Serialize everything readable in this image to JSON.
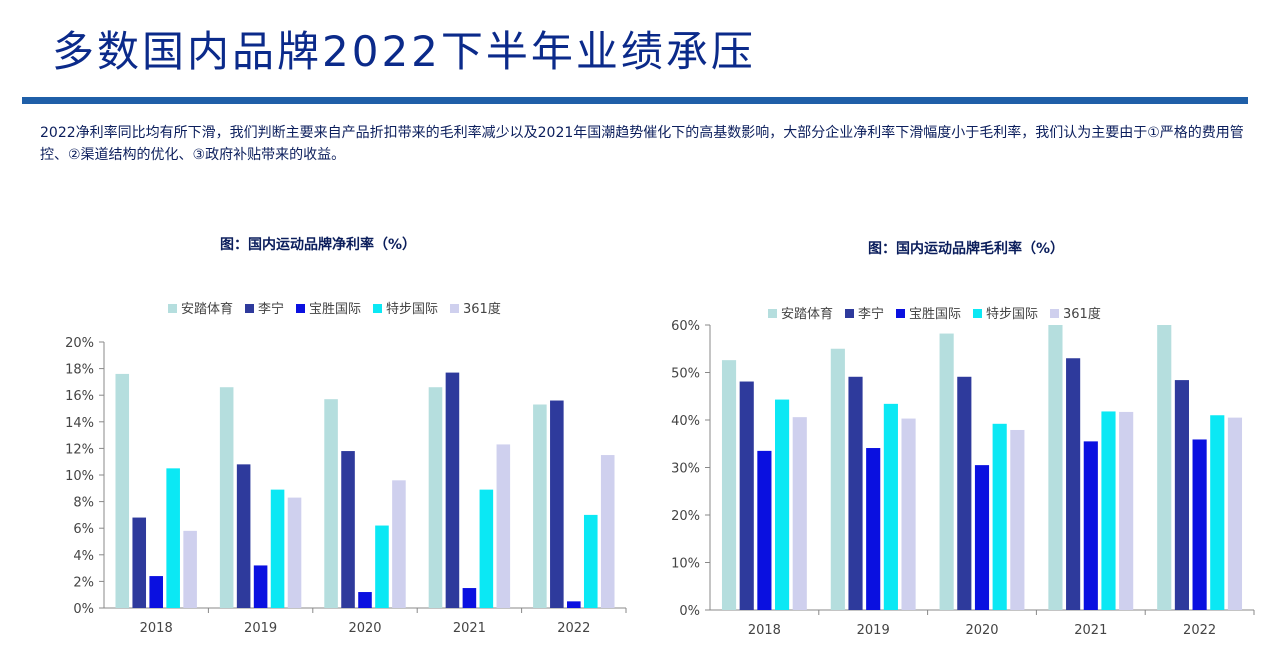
{
  "slide": {
    "title": "多数国内品牌2022下半年业绩承压",
    "summary": "2022净利率同比均有所下滑，我们判断主要来自产品折扣带来的毛利率减少以及2021年国潮趋势催化下的高基数影响，大部分企业净利率下滑幅度小于毛利率，我们认为主要由于①严格的费用管控、②渠道结构的优化、③政府补贴带来的收益。"
  },
  "colors": {
    "安踏体育": "#b5dede",
    "李宁": "#2e3a9c",
    "宝胜国际": "#0a10e0",
    "特步国际": "#0be8f4",
    "361度": "#cfd0ee"
  },
  "chart_data": [
    {
      "type": "bar",
      "title": "图：国内运动品牌净利率（%）",
      "categories": [
        "2018",
        "2019",
        "2020",
        "2021",
        "2022"
      ],
      "series": [
        {
          "name": "安踏体育",
          "values": [
            17.6,
            16.6,
            15.7,
            16.6,
            15.3
          ]
        },
        {
          "name": "李宁",
          "values": [
            6.8,
            10.8,
            11.8,
            17.7,
            15.6
          ]
        },
        {
          "name": "宝胜国际",
          "values": [
            2.4,
            3.2,
            1.2,
            1.5,
            0.5
          ]
        },
        {
          "name": "特步国际",
          "values": [
            10.5,
            8.9,
            6.2,
            8.9,
            7.0
          ]
        },
        {
          "name": "361度",
          "values": [
            5.8,
            8.3,
            9.6,
            12.3,
            11.5
          ]
        }
      ],
      "ylim": [
        0,
        20
      ],
      "yticks": [
        "0%",
        "2%",
        "4%",
        "6%",
        "8%",
        "10%",
        "12%",
        "14%",
        "16%",
        "18%",
        "20%"
      ],
      "ytick_values": [
        0,
        2,
        4,
        6,
        8,
        10,
        12,
        14,
        16,
        18,
        20
      ],
      "legend": "top",
      "grid": false
    },
    {
      "type": "bar",
      "title": "图：国内运动品牌毛利率（%）",
      "categories": [
        "2018",
        "2019",
        "2020",
        "2021",
        "2022"
      ],
      "series": [
        {
          "name": "安踏体育",
          "values": [
            52.6,
            55.0,
            58.2,
            60.0,
            60.0
          ]
        },
        {
          "name": "李宁",
          "values": [
            48.1,
            49.1,
            49.1,
            53.0,
            48.4
          ]
        },
        {
          "name": "宝胜国际",
          "values": [
            33.5,
            34.1,
            30.5,
            35.5,
            35.9
          ]
        },
        {
          "name": "特步国际",
          "values": [
            44.3,
            43.4,
            39.2,
            41.8,
            41.0
          ]
        },
        {
          "name": "361度",
          "values": [
            40.6,
            40.3,
            37.9,
            41.7,
            40.5
          ]
        }
      ],
      "ylim": [
        0,
        60
      ],
      "yticks": [
        "0%",
        "10%",
        "20%",
        "30%",
        "40%",
        "50%",
        "60%"
      ],
      "ytick_values": [
        0,
        10,
        20,
        30,
        40,
        50,
        60
      ],
      "legend": "top",
      "grid": false
    }
  ]
}
